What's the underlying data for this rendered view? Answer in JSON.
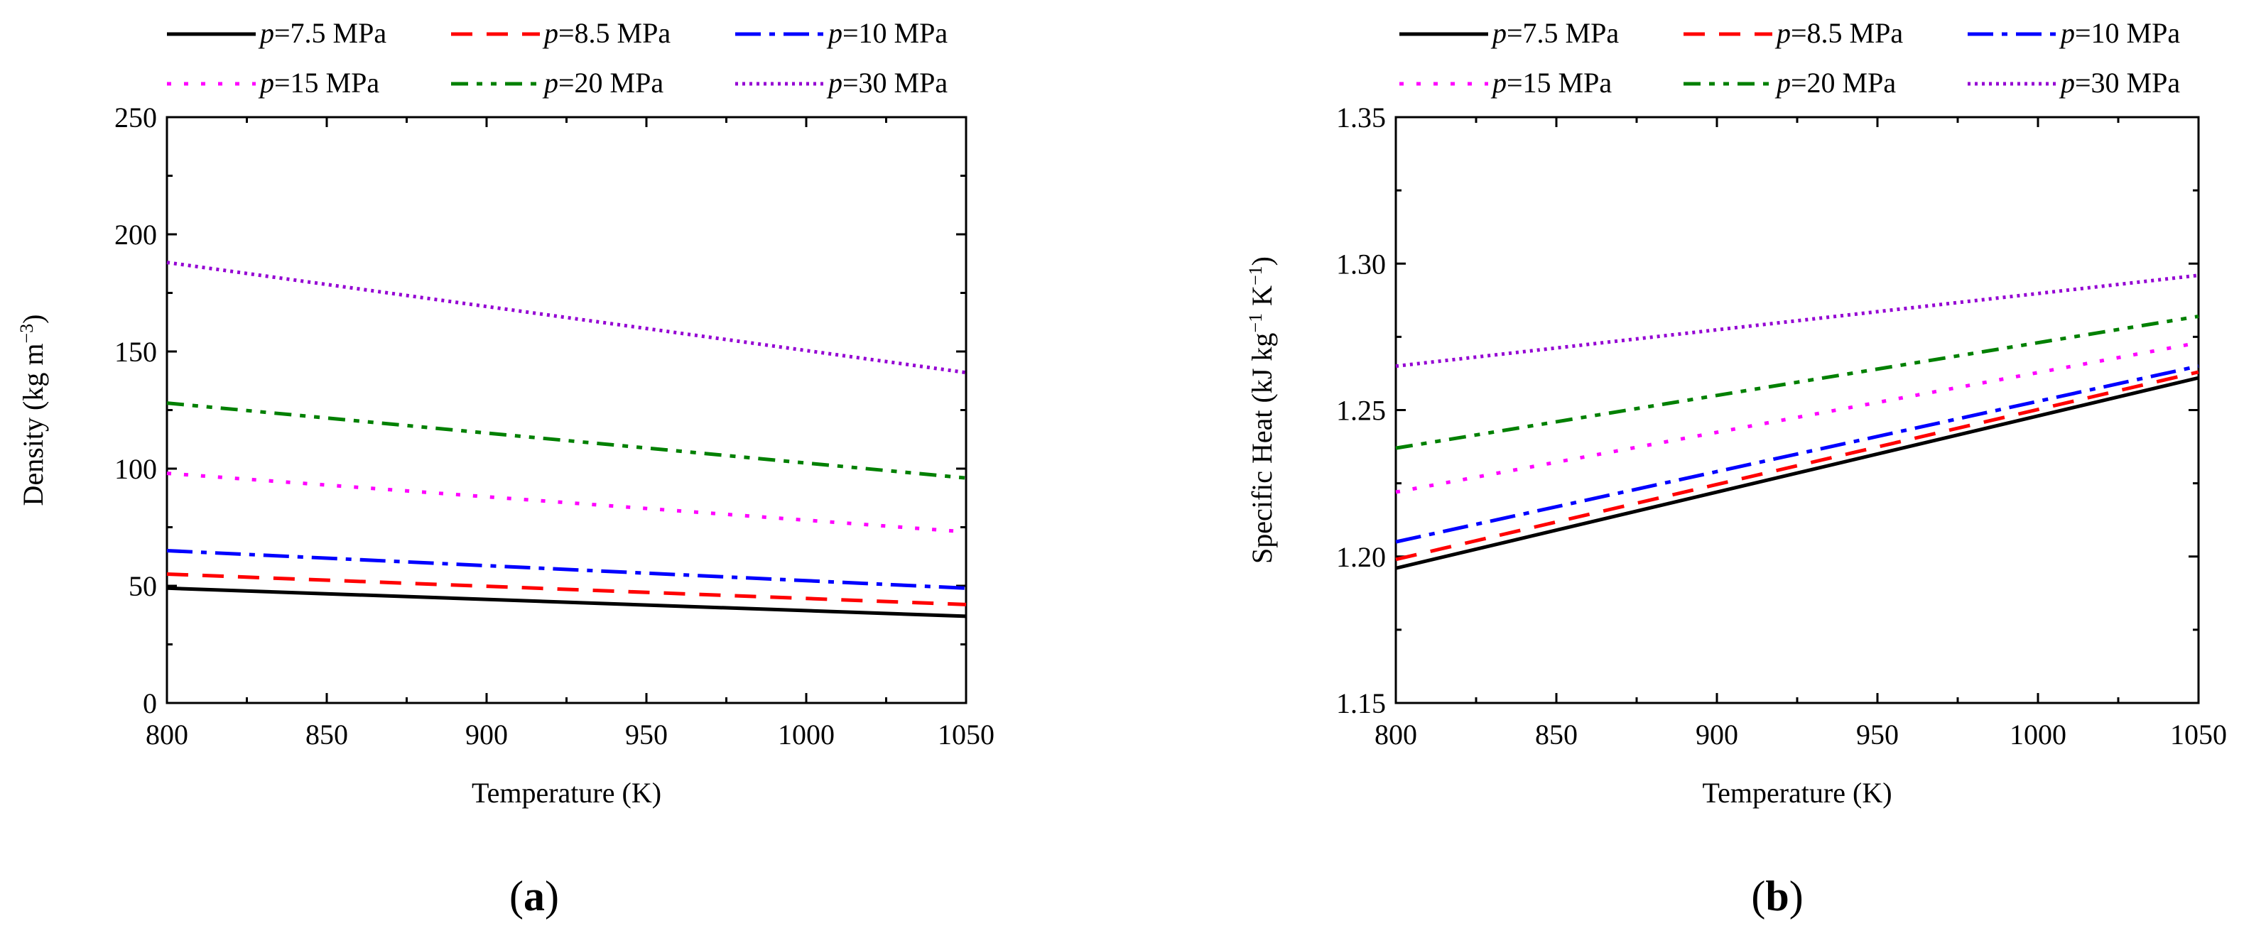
{
  "figure_labels": {
    "a": {
      "open": "(",
      "letter": "a",
      "close": ")"
    },
    "b": {
      "open": "(",
      "letter": "b",
      "close": ")"
    }
  },
  "series_styles": [
    {
      "color": "#000000",
      "dash": ""
    },
    {
      "color": "#ff0000",
      "dash": "30,20"
    },
    {
      "color": "#0000ff",
      "dash": "36,12,8,12"
    },
    {
      "color": "#ff00ff",
      "dash": "6,18"
    },
    {
      "color": "#008000",
      "dash": "24,12,8,12,8,12"
    },
    {
      "color": "#9400d3",
      "dash": "4,6"
    }
  ],
  "chart_data": [
    {
      "type": "line",
      "panel": "a",
      "title": "",
      "xlabel": "Temperature (K)",
      "ylabel": {
        "main": "Density (kg m",
        "sup": "−3",
        "end": ")"
      },
      "xlim": [
        800,
        1050
      ],
      "ylim": [
        0,
        250
      ],
      "xticks": [
        "800",
        "850",
        "900",
        "950",
        "1000",
        "1050"
      ],
      "yticks": [
        "0",
        "50",
        "100",
        "150",
        "200",
        "250"
      ],
      "x": [
        800,
        1050
      ],
      "legend_location": "top",
      "series": [
        {
          "p": "p",
          "name": "=7.5 MPa",
          "values": [
            49,
            37
          ]
        },
        {
          "p": "p",
          "name": "=8.5 MPa",
          "values": [
            55,
            42
          ]
        },
        {
          "p": "p",
          "name": "=10 MPa",
          "values": [
            65,
            49
          ]
        },
        {
          "p": "p",
          "name": "=15 MPa",
          "values": [
            98,
            73
          ]
        },
        {
          "p": "p",
          "name": "=20 MPa",
          "values": [
            128,
            96
          ]
        },
        {
          "p": "p",
          "name": "=30 MPa",
          "values": [
            188,
            141
          ]
        }
      ]
    },
    {
      "type": "line",
      "panel": "b",
      "title": "",
      "xlabel": "Temperature (K)",
      "ylabel": {
        "main": "Specific Heat (kJ kg",
        "sup1": "−1",
        "mid": " K",
        "sup2": "−1",
        "end": ")"
      },
      "xlim": [
        800,
        1050
      ],
      "ylim": [
        1.15,
        1.35
      ],
      "xticks": [
        "800",
        "850",
        "900",
        "950",
        "1000",
        "1050"
      ],
      "yticks": [
        "1.15",
        "1.20",
        "1.25",
        "1.30",
        "1.35"
      ],
      "x": [
        800,
        1050
      ],
      "legend_location": "top",
      "series": [
        {
          "p": "p",
          "name": "=7.5 MPa",
          "values": [
            1.196,
            1.261
          ]
        },
        {
          "p": "p",
          "name": "=8.5 MPa",
          "values": [
            1.199,
            1.263
          ]
        },
        {
          "p": "p",
          "name": "=10 MPa",
          "values": [
            1.205,
            1.265
          ]
        },
        {
          "p": "p",
          "name": "=15 MPa",
          "values": [
            1.222,
            1.273
          ]
        },
        {
          "p": "p",
          "name": "=20 MPa",
          "values": [
            1.237,
            1.282
          ]
        },
        {
          "p": "p",
          "name": "=30 MPa",
          "values": [
            1.265,
            1.296
          ]
        }
      ]
    }
  ]
}
